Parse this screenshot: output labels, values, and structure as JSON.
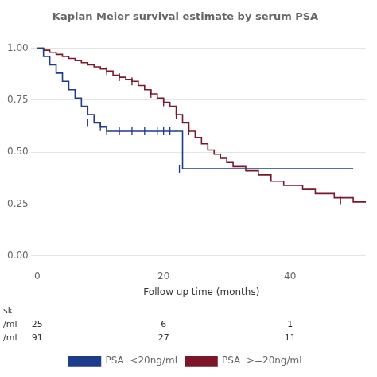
{
  "chart_data": {
    "type": "line",
    "title": "Kaplan Meier survival estimate by serum PSA",
    "x_label": "Follow up time (months)",
    "xlim": [
      0,
      52
    ],
    "xticks": [
      0,
      20,
      40
    ],
    "ylim": [
      -0.03,
      1.08
    ],
    "yticks": [
      {
        "value": 0.0,
        "label": "0.00"
      },
      {
        "value": 0.25,
        "label": "0.25"
      },
      {
        "value": 0.5,
        "label": "0.50"
      },
      {
        "value": 0.75,
        "label": "0.75"
      },
      {
        "value": 1.0,
        "label": "1.00"
      }
    ],
    "grid": "y",
    "legend": "bottom",
    "line_style": "steps",
    "series": [
      {
        "name": "PSA  <20ng/ml",
        "color": "#1f3b8c",
        "x": [
          0,
          1,
          2,
          3,
          4,
          5,
          6,
          7,
          8,
          9,
          10,
          11,
          12,
          13,
          14,
          15,
          16,
          17,
          18,
          19,
          20,
          21,
          22,
          23,
          50
        ],
        "values": [
          1.0,
          0.96,
          0.92,
          0.88,
          0.84,
          0.8,
          0.76,
          0.72,
          0.68,
          0.64,
          0.62,
          0.6,
          0.6,
          0.6,
          0.6,
          0.6,
          0.6,
          0.6,
          0.6,
          0.6,
          0.6,
          0.6,
          0.6,
          0.42,
          0.42
        ],
        "censor_x": [
          8,
          10,
          11,
          13,
          15,
          17,
          19,
          20,
          21,
          22.5
        ],
        "censor_y": [
          0.64,
          0.62,
          0.6,
          0.6,
          0.6,
          0.6,
          0.6,
          0.6,
          0.6,
          0.42
        ]
      },
      {
        "name": "PSA  >=20ng/ml",
        "color": "#7b1728",
        "x": [
          0,
          1,
          2,
          3,
          4,
          5,
          6,
          7,
          8,
          9,
          10,
          11,
          12,
          13,
          14,
          15,
          16,
          17,
          18,
          19,
          20,
          21,
          22,
          23,
          24,
          25,
          26,
          27,
          28,
          29,
          30,
          31,
          33,
          35,
          37,
          39,
          42,
          44,
          47,
          50,
          52
        ],
        "values": [
          1.0,
          0.99,
          0.98,
          0.97,
          0.96,
          0.95,
          0.94,
          0.93,
          0.92,
          0.91,
          0.9,
          0.89,
          0.87,
          0.86,
          0.85,
          0.84,
          0.82,
          0.8,
          0.78,
          0.76,
          0.74,
          0.72,
          0.68,
          0.64,
          0.6,
          0.57,
          0.54,
          0.51,
          0.49,
          0.47,
          0.45,
          0.43,
          0.41,
          0.39,
          0.36,
          0.34,
          0.32,
          0.3,
          0.28,
          0.26,
          0.26
        ],
        "censor_x": [
          11,
          13,
          15,
          18,
          20,
          22,
          24,
          48
        ],
        "censor_y": [
          0.89,
          0.86,
          0.84,
          0.78,
          0.74,
          0.68,
          0.6,
          0.265
        ]
      }
    ],
    "at_risk": {
      "title": "sk",
      "x": [
        0,
        20,
        40
      ],
      "rows": [
        {
          "label": "/ml",
          "values": [
            25,
            6,
            1
          ]
        },
        {
          "label": "/ml",
          "values": [
            91,
            27,
            11
          ]
        }
      ]
    }
  }
}
